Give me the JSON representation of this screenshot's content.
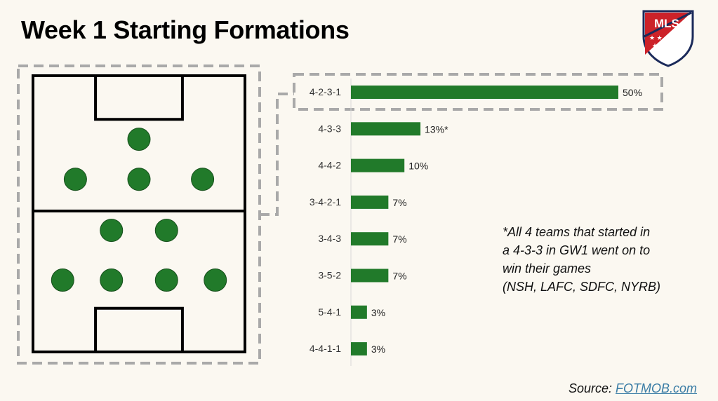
{
  "title": "Week 1 Starting Formations",
  "logo_text": "MLS",
  "note": {
    "line1": "*All 4 teams that started in",
    "line2": "a 4-3-3 in GW1 went on to",
    "line3": "win their games",
    "line4": "(NSH, LAFC, SDFC, NYRB)"
  },
  "source": {
    "prefix": "Source: ",
    "link": "FOTMOB.com"
  },
  "colors": {
    "bar": "#217a2a",
    "player": "#217a2a",
    "highlight_dash": "#a9a9a9",
    "background": "#fbf8f1"
  },
  "chart_data": {
    "type": "bar",
    "orientation": "horizontal",
    "categories": [
      "4-2-3-1",
      "4-3-3",
      "4-4-2",
      "3-4-2-1",
      "3-4-3",
      "3-5-2",
      "5-4-1",
      "4-4-1-1"
    ],
    "values": [
      50,
      13,
      10,
      7,
      7,
      7,
      3,
      3
    ],
    "value_labels": [
      "50%",
      "13%*",
      "10%",
      "7%",
      "7%",
      "7%",
      "3%",
      "3%"
    ],
    "unit": "%",
    "highlighted": "4-2-3-1",
    "xlim": [
      0,
      50
    ]
  },
  "pitch": {
    "formation": "4-2-3-1",
    "rows": [
      {
        "players": [
          0.5
        ]
      },
      {
        "players": [
          0.2,
          0.5,
          0.8
        ]
      },
      {
        "players": [
          0.37,
          0.63
        ]
      },
      {
        "players": [
          0.14,
          0.37,
          0.63,
          0.86
        ]
      }
    ]
  }
}
